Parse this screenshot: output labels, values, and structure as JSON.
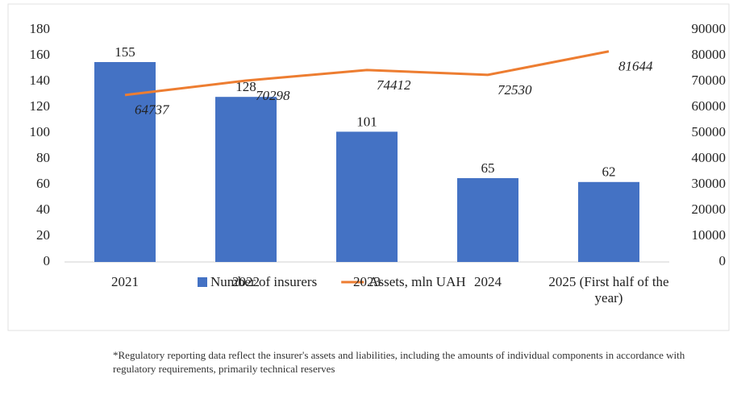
{
  "chart_data": {
    "type": "bar-line",
    "categories": [
      "2021",
      "2022",
      "2023",
      "2024",
      "2025 (First half of the year)"
    ],
    "series": [
      {
        "name": "Number of insurers",
        "type": "bar",
        "color": "#4472c4",
        "values": [
          155,
          128,
          101,
          65,
          62
        ]
      },
      {
        "name": "Assets, mln UAH",
        "type": "line",
        "axis": "y2",
        "color": "#ed7d31",
        "values": [
          64737,
          70298,
          74412,
          72530,
          81644
        ]
      }
    ],
    "ylim": [
      0,
      180
    ],
    "yticks": [
      0,
      20,
      40,
      60,
      80,
      100,
      120,
      140,
      160,
      180
    ],
    "y2lim": [
      0,
      90000
    ],
    "y2ticks": [
      0,
      10000,
      20000,
      30000,
      40000,
      50000,
      60000,
      70000,
      80000,
      90000
    ],
    "footnote": "*Regulatory reporting data reflect the insurer's assets and liabilities, including the amounts of individual components in accordance with regulatory requirements, primarily technical reserves"
  }
}
